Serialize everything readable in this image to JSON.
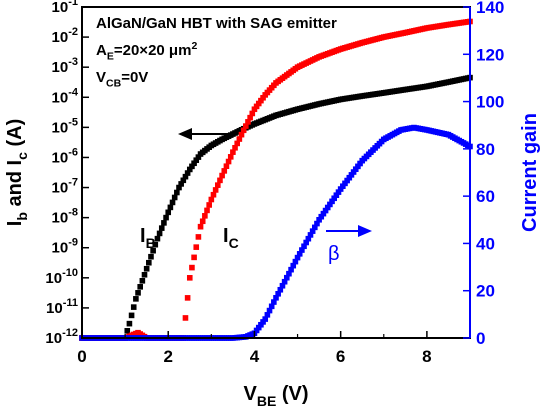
{
  "chart_data": {
    "type": "scatter",
    "annotation_lines": [
      {
        "text": "AlGaN/GaN HBT  with SAG emitter",
        "parts": [
          [
            "AlGaN/GaN HBT  with SAG emitter",
            ""
          ]
        ]
      },
      {
        "text": "AE=20×20 μm2",
        "parts": [
          [
            "A",
            ""
          ],
          [
            "E",
            "sub"
          ],
          [
            "=20×20 μm",
            ""
          ],
          [
            "2",
            "sup"
          ]
        ]
      },
      {
        "text": "VCB=0V",
        "parts": [
          [
            "V",
            ""
          ],
          [
            "CB",
            "sub"
          ],
          [
            "=0V",
            ""
          ]
        ]
      }
    ],
    "xlabel": {
      "text": "VBE (V)",
      "parts": [
        [
          "V",
          ""
        ],
        [
          "BE",
          "sub"
        ],
        [
          " (V)",
          ""
        ]
      ]
    },
    "ylabel_left": {
      "text": "Ib and Ic (A)",
      "parts": [
        [
          "I",
          ""
        ],
        [
          "b",
          "sub"
        ],
        [
          " and I",
          ""
        ],
        [
          "c",
          "sub"
        ],
        [
          " (A)",
          ""
        ]
      ]
    },
    "ylabel_right": "Current gain",
    "x_ticks": [
      "0",
      "2",
      "4",
      "6",
      "8"
    ],
    "y_left_ticks": [
      {
        "mantissa": "10",
        "exp": "-12"
      },
      {
        "mantissa": "10",
        "exp": "-11"
      },
      {
        "mantissa": "10",
        "exp": "-10"
      },
      {
        "mantissa": "10",
        "exp": "-9"
      },
      {
        "mantissa": "10",
        "exp": "-8"
      },
      {
        "mantissa": "10",
        "exp": "-7"
      },
      {
        "mantissa": "10",
        "exp": "-6"
      },
      {
        "mantissa": "10",
        "exp": "-5"
      },
      {
        "mantissa": "10",
        "exp": "-4"
      },
      {
        "mantissa": "10",
        "exp": "-3"
      },
      {
        "mantissa": "10",
        "exp": "-2"
      },
      {
        "mantissa": "10",
        "exp": "-1"
      }
    ],
    "y_right_ticks": [
      "0",
      "20",
      "40",
      "60",
      "80",
      "100",
      "120",
      "140"
    ],
    "xlim": [
      0,
      9
    ],
    "ylim_left_log10": [
      -12,
      -1
    ],
    "ylim_right": [
      0,
      140
    ],
    "colors": {
      "axes": "#000000",
      "right_axis": "#0000ff",
      "Ib": "#000000",
      "Ic": "#ff0000",
      "beta": "#0000ff"
    },
    "series": [
      {
        "name": "IB",
        "axis": "left",
        "color": "#000000",
        "parts": [
          [
            "I",
            ""
          ],
          [
            "B",
            "sub"
          ]
        ],
        "x": [
          0.0,
          0.5,
          1.0,
          1.1,
          1.25,
          1.5,
          1.75,
          2.0,
          2.25,
          2.5,
          2.75,
          3.0,
          3.25,
          3.5,
          3.75,
          4.0,
          4.5,
          5.0,
          5.5,
          6.0,
          6.5,
          7.0,
          7.5,
          8.0,
          8.5,
          9.0
        ],
        "y": [
          1e-12,
          1e-12,
          1e-12,
          3e-12,
          2e-11,
          2e-10,
          2e-09,
          1.5e-08,
          1e-07,
          4e-07,
          1.3e-06,
          2.5e-06,
          4e-06,
          6e-06,
          9e-06,
          1.3e-05,
          2.5e-05,
          4e-05,
          6e-05,
          8.5e-05,
          0.00011,
          0.00014,
          0.00018,
          0.00023,
          0.00032,
          0.00045
        ]
      },
      {
        "name": "IC",
        "axis": "left",
        "color": "#ff0000",
        "parts": [
          [
            "I",
            ""
          ],
          [
            "C",
            "sub"
          ]
        ],
        "x": [
          0.0,
          0.5,
          1.0,
          1.3,
          1.5,
          2.0,
          2.35,
          2.5,
          2.75,
          3.0,
          3.25,
          3.5,
          3.75,
          4.0,
          4.25,
          4.5,
          5.0,
          5.5,
          6.0,
          6.5,
          7.0,
          7.5,
          8.0,
          8.5,
          9.0
        ],
        "y": [
          1e-12,
          1e-12,
          1e-12,
          1.5e-12,
          1e-12,
          1e-12,
          1e-12,
          1e-10,
          5e-09,
          4e-08,
          2.5e-07,
          1.5e-06,
          8e-06,
          4e-05,
          0.00012,
          0.0003,
          0.001,
          0.0022,
          0.004,
          0.0065,
          0.01,
          0.014,
          0.02,
          0.026,
          0.033
        ]
      },
      {
        "name": "β",
        "axis": "right",
        "color": "#0000ff",
        "parts": [
          [
            "β",
            ""
          ]
        ],
        "x": [
          0.0,
          0.5,
          1.0,
          2.0,
          3.0,
          3.5,
          3.8,
          4.0,
          4.25,
          4.5,
          5.0,
          5.5,
          6.0,
          6.5,
          7.0,
          7.4,
          7.7,
          8.0,
          8.5,
          9.0
        ],
        "y": [
          0,
          0,
          0,
          0,
          0,
          0,
          0.5,
          2,
          8,
          17,
          34,
          50,
          63,
          75,
          84,
          88,
          89,
          88,
          86,
          81
        ]
      }
    ],
    "arrow_labels": {
      "beta": "β"
    }
  }
}
